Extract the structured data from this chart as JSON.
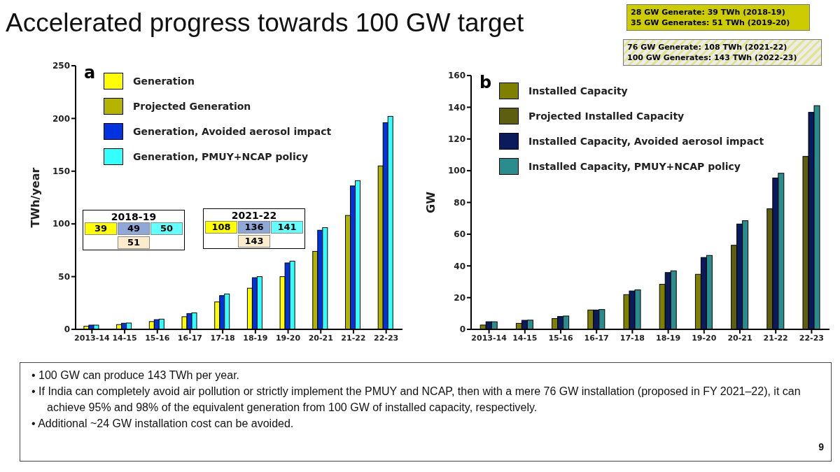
{
  "chart_data": [
    {
      "type": "bar",
      "title": "Accelerated progress towards 100 GW target",
      "ylabel": "TWh/year",
      "legend": "top left",
      "grid": false,
      "categories": [
        "2013-14",
        "14-15",
        "15-16",
        "16-17",
        "17-18",
        "18-19",
        "19-20",
        "20-21",
        "21-22",
        "22-23"
      ],
      "ylim": [
        0,
        250
      ],
      "yticks": [
        0,
        50,
        100,
        150,
        200,
        250
      ],
      "series": [
        {
          "name": "Generation",
          "color": "#ffff00",
          "values": [
            3,
            4.5,
            7.4,
            12,
            26,
            39,
            50,
            null,
            null,
            null
          ]
        },
        {
          "name": "Projected Generation",
          "color": "#b4b400",
          "values": [
            null,
            null,
            null,
            null,
            null,
            null,
            null,
            74,
            108,
            155
          ]
        },
        {
          "name": "Generation, Avoided aerosol impact",
          "color": "#0033dd",
          "values": [
            4,
            5.8,
            9.2,
            15,
            32,
            49,
            63,
            94,
            136,
            196
          ]
        },
        {
          "name": "Generation, PMUY+NCAP policy",
          "color": "#33ffff",
          "values": [
            4,
            6,
            9.7,
            15.7,
            33.6,
            50,
            64.7,
            96.5,
            141,
            202
          ]
        }
      ],
      "annotations": [
        "a",
        "2018-19",
        "39",
        "49",
        "50",
        "51",
        "2021-22",
        "108",
        "136",
        "141",
        "143"
      ]
    },
    {
      "type": "bar",
      "ylabel": "GW",
      "legend": "top left",
      "grid": false,
      "categories": [
        "2013-14",
        "14-15",
        "15-16",
        "16-17",
        "17-18",
        "18-19",
        "19-20",
        "20-21",
        "21-22",
        "22-23"
      ],
      "ylim": [
        0,
        160
      ],
      "yticks": [
        0,
        20,
        40,
        60,
        80,
        100,
        120,
        140,
        160
      ],
      "series": [
        {
          "name": "Installed Capacity",
          "color": "#808000",
          "values": [
            2.7,
            3.8,
            6.8,
            12.2,
            21.9,
            28.4,
            34.7,
            null,
            null,
            null
          ]
        },
        {
          "name": "Projected Installed Capacity",
          "color": "#5e5e10",
          "values": [
            null,
            null,
            null,
            null,
            null,
            null,
            null,
            53,
            76,
            109
          ]
        },
        {
          "name": "Installed Capacity, Avoided aerosol impact",
          "color": "#0a1a5c",
          "values": [
            4.8,
            5.7,
            8.1,
            12.2,
            24.2,
            35.8,
            45.3,
            66.4,
            95.4,
            136.8
          ]
        },
        {
          "name": "Installed Capacity, PMUY+NCAP policy",
          "color": "#2a8c8c",
          "values": [
            4.8,
            5.8,
            8.4,
            12.5,
            24.9,
            36.9,
            46.6,
            68.5,
            98.4,
            141
          ]
        }
      ],
      "annotations": [
        "b",
        "28 GW Generate: 39 TWh (2018-19)",
        "35 GW Generates: 51 TWh (2019-20)",
        "76 GW Generate: 108 TWh (2021-22)",
        "100 GW Generates: 143 TWh (2022-23)"
      ]
    },
    {
      "type": "other",
      "annotations": [
        "• 100 GW can produce 143 TWh per year.",
        "• If India can completely avoid air pollution or strictly implement the PMUY and NCAP, then with a mere 76 GW installation (proposed in FY 2021–22), it can achieve 95% and 98% of the equivalent generation from 100 GW of installed capacity, respectively.",
        "• Additional ~24 GW installation cost can be avoided.",
        "9"
      ]
    }
  ]
}
